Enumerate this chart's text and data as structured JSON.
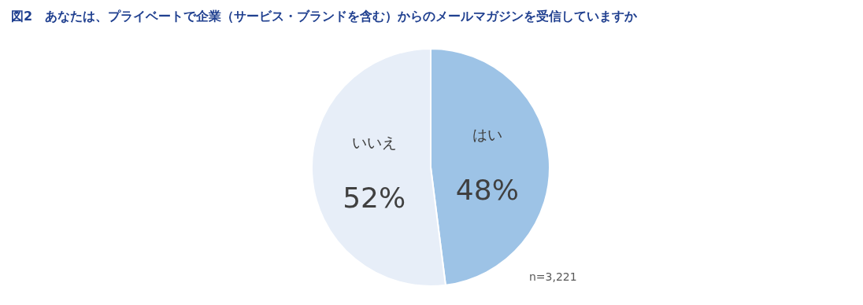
{
  "chart_data": {
    "type": "pie",
    "title": "図2　あなたは、プライベートで企業（サービス・ブランドを含む）からのメールマガジンを受信していますか",
    "categories": [
      "はい",
      "いいえ"
    ],
    "values": [
      48,
      52
    ],
    "value_labels": [
      "48%",
      "52%"
    ],
    "colors": [
      "#9dc3e6",
      "#e7eef8"
    ],
    "annotations": [
      "n=3,221"
    ]
  }
}
